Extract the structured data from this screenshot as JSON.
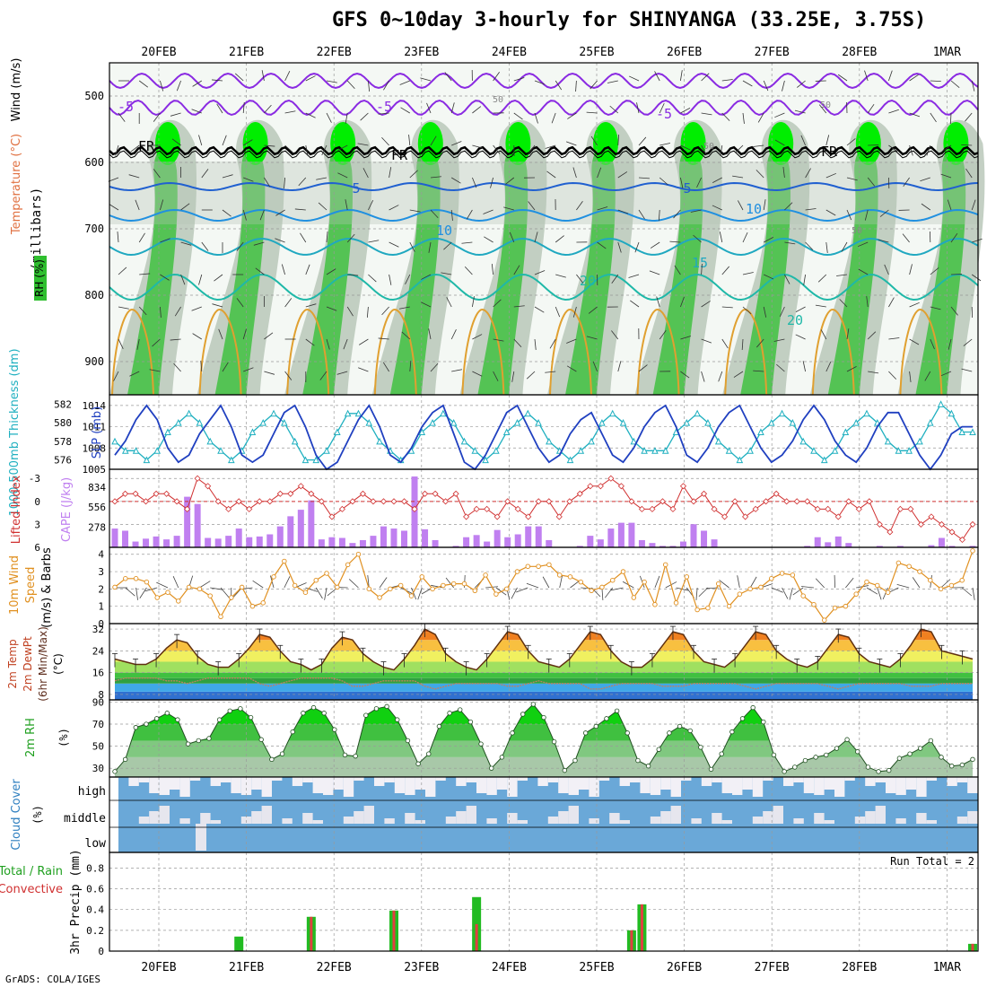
{
  "title": "GFS 0~10day 3-hourly for SHINYANGA (33.25E, 3.75S)",
  "footer": "GrADS: COLA/IGES",
  "colors": {
    "frame": "#000000",
    "grid": "#999999",
    "rh_green": "#2fbf2f",
    "rh_light": "#e8f3e8",
    "rh_gray": "#b5c4b5",
    "temp_purple": "#8a2be2",
    "temp_blue": "#2060d0",
    "temp_teal": "#1fb8a8",
    "temp_orange": "#e0a030",
    "slp_blue": "#2040c0",
    "thick_cyan": "#20b0c0",
    "li_red": "#d03030",
    "cape_purple": "#c080f0",
    "wind_orange": "#e09020",
    "cloud_blue": "#6aa8d8",
    "cloud_white": "#f2f0f6",
    "precip_green": "#22bb22",
    "precip_red": "#e04040"
  },
  "chart_data": {
    "type": "meteogram",
    "dates": [
      "20FEB",
      "21FEB",
      "22FEB",
      "23FEB",
      "24FEB",
      "25FEB",
      "26FEB",
      "27FEB",
      "28FEB",
      "1MAR"
    ],
    "panels": {
      "upper_air": {
        "ylabel_parts": [
          "Wind (m/s)",
          "Temperature (°C)",
          "RH (%)"
        ],
        "axis_label": "(millibars)",
        "yticks": [
          500,
          600,
          700,
          800,
          900
        ],
        "ylim": [
          950,
          450
        ],
        "contour_labels": [
          "-5",
          "-5",
          "-5",
          "FR",
          "FR",
          "FR",
          "5",
          "5",
          "10",
          "10",
          "15",
          "20",
          "20",
          "50",
          "50",
          "50",
          "50"
        ]
      },
      "slp_thickness": {
        "ylabel_left": "1000-500mb Thickness (dm)",
        "ylabel_right": "SLP (mb)",
        "thickness_ticks": [
          576,
          578,
          580,
          582
        ],
        "slp_ticks": [
          1005,
          1008,
          1011,
          1014
        ],
        "slp": [
          1007,
          1009,
          1012,
          1014,
          1012,
          1008,
          1006,
          1007,
          1010,
          1012,
          1014,
          1011,
          1007,
          1006,
          1007,
          1010,
          1013,
          1014,
          1011,
          1007,
          1005,
          1006,
          1009,
          1012,
          1014,
          1011,
          1007,
          1006,
          1008,
          1011,
          1013,
          1014,
          1010,
          1006,
          1005,
          1007,
          1010,
          1013,
          1014,
          1011,
          1008,
          1006,
          1007,
          1010,
          1012,
          1013,
          1010,
          1007,
          1006,
          1008,
          1011,
          1013,
          1014,
          1011,
          1007,
          1006,
          1008,
          1011,
          1013,
          1014,
          1011,
          1008,
          1006,
          1007,
          1009,
          1012,
          1014,
          1012,
          1009,
          1007,
          1006,
          1008,
          1011,
          1013,
          1013,
          1010,
          1007,
          1005,
          1007,
          1010,
          1011,
          1011
        ],
        "thickness": [
          578,
          577,
          577,
          576,
          577,
          579,
          580,
          581,
          580,
          578,
          577,
          576,
          577,
          579,
          580,
          581,
          580,
          578,
          576,
          576,
          577,
          579,
          581,
          581,
          580,
          578,
          577,
          576,
          577,
          579,
          580,
          581,
          580,
          578,
          577,
          576,
          577,
          579,
          580,
          581,
          580,
          578,
          577,
          576,
          577,
          578,
          580,
          581,
          580,
          578,
          577,
          577,
          577,
          579,
          580,
          581,
          580,
          578,
          577,
          576,
          577,
          579,
          580,
          581,
          580,
          578,
          577,
          576,
          577,
          579,
          580,
          581,
          580,
          578,
          577,
          577,
          578,
          580,
          582,
          581,
          579,
          579
        ]
      },
      "li_cape": {
        "ylabel_left": "Lifted Index",
        "ylabel_right": "CAPE (J/kg)",
        "li_ticks": [
          -3,
          0,
          3,
          6
        ],
        "cape_ticks": [
          278,
          556,
          834
        ],
        "li": [
          0,
          -1,
          -1,
          0,
          -1,
          -1,
          0,
          1,
          -3,
          -2,
          0,
          1,
          0,
          1,
          0,
          0,
          -1,
          -1,
          -2,
          -1,
          0,
          2,
          1,
          0,
          -1,
          0,
          0,
          0,
          0,
          1,
          -1,
          -1,
          0,
          -1,
          2,
          1,
          1,
          2,
          0,
          1,
          2,
          0,
          0,
          2,
          0,
          -1,
          -2,
          -2,
          -3,
          -2,
          0,
          1,
          1,
          0,
          1,
          -2,
          0,
          -1,
          1,
          2,
          0,
          2,
          1,
          0,
          -1,
          0,
          0,
          0,
          1,
          1,
          2,
          0,
          1,
          0,
          3,
          4,
          1,
          1,
          3,
          2,
          3,
          4,
          5,
          3
        ],
        "cape": [
          260,
          230,
          80,
          120,
          150,
          110,
          160,
          700,
          600,
          130,
          120,
          160,
          260,
          140,
          150,
          180,
          290,
          430,
          520,
          650,
          110,
          140,
          130,
          60,
          100,
          160,
          290,
          260,
          230,
          980,
          250,
          100,
          0,
          20,
          140,
          170,
          80,
          240,
          140,
          180,
          290,
          290,
          100,
          0,
          0,
          20,
          160,
          110,
          260,
          340,
          340,
          100,
          60,
          20,
          20,
          80,
          320,
          230,
          110,
          0,
          0,
          0,
          0,
          0,
          0,
          0,
          0,
          20,
          140,
          70,
          150,
          60,
          0,
          0,
          20,
          0,
          20,
          0,
          0,
          30,
          130,
          20,
          0,
          20
        ]
      },
      "wind10m": {
        "ylabel": [
          "10m Wind",
          "Speed",
          "(m/s)",
          "& Barbs"
        ],
        "yticks": [
          0,
          1,
          2,
          3,
          4
        ],
        "speed": [
          2.1,
          2.6,
          2.6,
          2.4,
          1.5,
          1.8,
          1.3,
          2.1,
          2.0,
          1.6,
          0.4,
          1.5,
          2.1,
          1.0,
          1.2,
          2.7,
          3.6,
          2.2,
          1.8,
          2.5,
          2.9,
          2.1,
          3.4,
          4.0,
          2.0,
          1.5,
          2.0,
          2.2,
          1.6,
          2.7,
          2.0,
          2.2,
          2.3,
          2.3,
          1.9,
          2.8,
          1.7,
          2.0,
          3.0,
          3.3,
          3.3,
          3.4,
          2.8,
          2.7,
          2.4,
          1.9,
          2.1,
          2.5,
          3.0,
          1.5,
          2.4,
          1.1,
          3.4,
          1.2,
          2.7,
          0.8,
          0.9,
          2.3,
          1.0,
          1.7,
          2.0,
          2.1,
          2.6,
          2.9,
          2.8,
          1.6,
          1.1,
          0.2,
          0.9,
          1.0,
          1.7,
          2.4,
          2.2,
          1.8,
          3.5,
          3.3,
          3.0,
          2.5,
          2.0,
          2.2,
          2.5,
          4.2
        ]
      },
      "temp2m": {
        "ylabel": [
          "2m Temp",
          "2m DewPt",
          "(6hr Min/Max)",
          "(°C)"
        ],
        "yticks": [
          8,
          16,
          24,
          32
        ],
        "ylim": [
          6,
          34
        ],
        "temp": [
          21,
          20,
          19,
          19,
          21,
          25,
          28,
          27,
          22,
          19,
          18,
          18,
          21,
          25,
          30,
          29,
          24,
          20,
          19,
          17,
          19,
          25,
          29,
          28,
          23,
          20,
          18,
          17,
          21,
          26,
          32,
          30,
          23,
          20,
          18,
          17,
          21,
          26,
          31,
          30,
          24,
          20,
          19,
          18,
          21,
          26,
          31,
          30,
          24,
          20,
          18,
          18,
          21,
          26,
          31,
          30,
          24,
          20,
          19,
          18,
          21,
          26,
          31,
          30,
          24,
          21,
          19,
          18,
          20,
          25,
          30,
          29,
          23,
          20,
          19,
          18,
          21,
          26,
          32,
          31,
          24,
          23,
          22,
          21
        ],
        "dewpt": [
          13,
          14,
          14,
          14,
          14,
          13,
          13,
          12,
          13,
          14,
          14,
          14,
          14,
          14,
          12,
          11,
          12,
          13,
          14,
          14,
          14,
          14,
          13,
          11,
          11,
          12,
          13,
          13,
          13,
          13,
          11,
          10,
          11,
          12,
          12,
          12,
          12,
          12,
          11,
          11,
          12,
          13,
          12,
          12,
          12,
          12,
          10,
          10,
          11,
          12,
          12,
          12,
          12,
          11,
          11,
          11,
          12,
          12,
          12,
          12,
          12,
          11,
          10,
          11,
          12,
          12,
          12,
          12,
          12,
          11,
          10,
          11,
          12,
          12,
          12,
          12,
          12,
          11,
          11,
          11,
          12,
          12,
          12,
          12
        ]
      },
      "rh2m": {
        "ylabel": [
          "2m RH",
          "(%)"
        ],
        "yticks": [
          30,
          50,
          70,
          90
        ],
        "ylim": [
          22,
          92
        ],
        "rh": [
          27,
          38,
          67,
          70,
          75,
          80,
          74,
          52,
          55,
          57,
          74,
          82,
          84,
          76,
          56,
          38,
          43,
          63,
          80,
          85,
          80,
          65,
          42,
          41,
          78,
          84,
          86,
          74,
          55,
          34,
          43,
          68,
          80,
          83,
          72,
          52,
          30,
          40,
          62,
          79,
          88,
          76,
          54,
          28,
          37,
          62,
          68,
          75,
          82,
          62,
          37,
          32,
          47,
          62,
          68,
          64,
          49,
          29,
          43,
          63,
          75,
          85,
          72,
          42,
          27,
          31,
          37,
          40,
          42,
          48,
          56,
          45,
          31,
          27,
          28,
          39,
          43,
          48,
          55,
          40,
          32,
          33,
          38
        ]
      },
      "cloud": {
        "ylabel": [
          "Cloud Cover",
          "(%)"
        ],
        "levels": [
          "high",
          "middle",
          "low"
        ]
      },
      "precip": {
        "ylabel": [
          "3hr Precip (mm)",
          "Total / Rain",
          "Convective"
        ],
        "yticks": [
          0,
          0.2,
          0.4,
          0.6,
          0.8
        ],
        "ylim": [
          0,
          0.95
        ],
        "run_total": "Run Total = 2",
        "bars": [
          {
            "index": 12,
            "total": 0.14,
            "conv": 0
          },
          {
            "index": 19,
            "total": 0.33,
            "conv": 0.33
          },
          {
            "index": 27,
            "total": 0.39,
            "conv": 0.39
          },
          {
            "index": 35,
            "total": 0.52,
            "conv": 0.26
          },
          {
            "index": 50,
            "total": 0.2,
            "conv": 0.2
          },
          {
            "index": 51,
            "total": 0.45,
            "conv": 0.45
          },
          {
            "index": 83,
            "total": 0.07,
            "conv": 0.07
          }
        ]
      }
    }
  }
}
